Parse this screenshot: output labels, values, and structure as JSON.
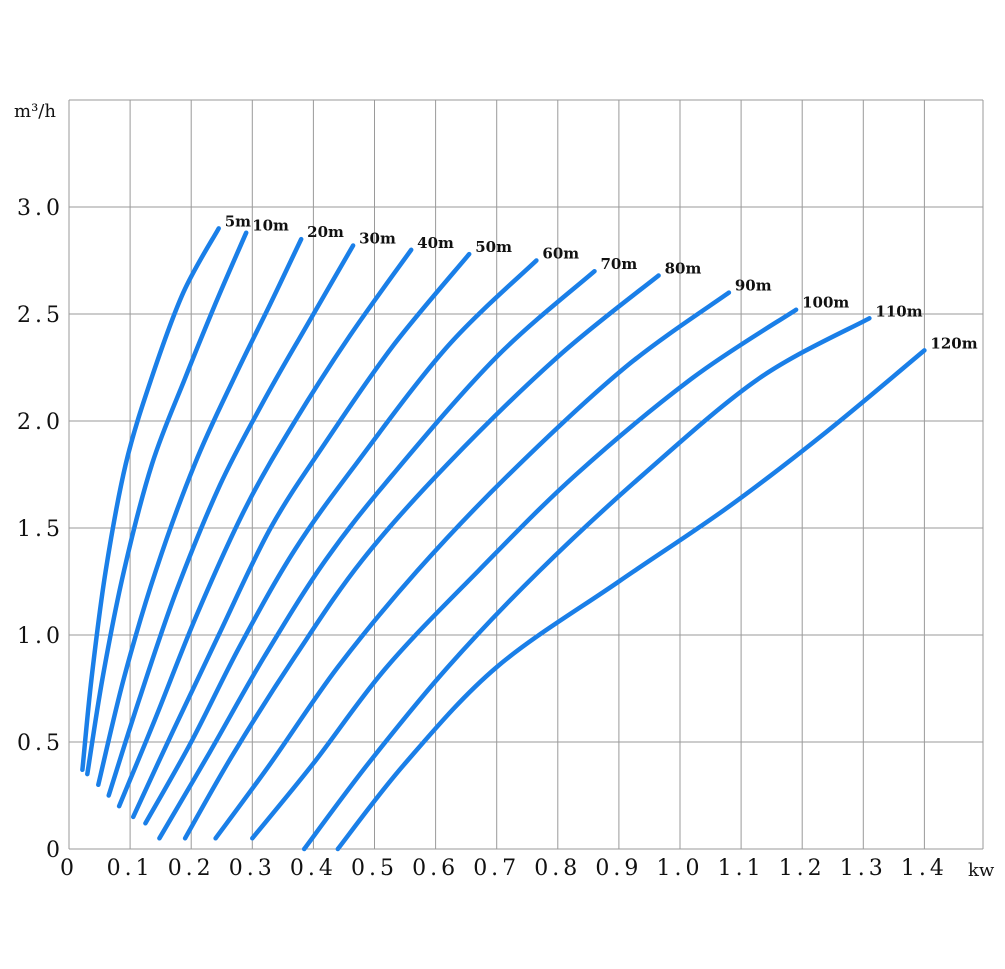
{
  "chart_data": {
    "type": "line",
    "xlabel": "kw",
    "ylabel": "m³/h",
    "xlim": [
      0,
      1.5
    ],
    "ylim": [
      0,
      3.5
    ],
    "x_ticks": [
      "0",
      "0.1",
      "0.2",
      "0.3",
      "0.4",
      "0.5",
      "0.6",
      "0.7",
      "0.8",
      "0.9",
      "1.0",
      "1.1",
      "1.2",
      "1.3",
      "1.4"
    ],
    "y_ticks": [
      "0",
      "0.5",
      "1.0",
      "1.5",
      "2.0",
      "2.5",
      "3.0"
    ],
    "grid": true,
    "line_color": "#1a7fe8",
    "series": [
      {
        "name": "5m",
        "x": [
          0.022,
          0.037,
          0.06,
          0.093,
          0.135,
          0.187,
          0.245
        ],
        "y": [
          0.37,
          0.8,
          1.3,
          1.8,
          2.2,
          2.6,
          2.9
        ]
      },
      {
        "name": "10m",
        "x": [
          0.03,
          0.055,
          0.09,
          0.136,
          0.19,
          0.24,
          0.29
        ],
        "y": [
          0.35,
          0.8,
          1.3,
          1.8,
          2.2,
          2.55,
          2.88
        ]
      },
      {
        "name": "20m",
        "x": [
          0.048,
          0.09,
          0.142,
          0.206,
          0.27,
          0.33,
          0.38
        ],
        "y": [
          0.3,
          0.8,
          1.3,
          1.8,
          2.2,
          2.55,
          2.85
        ]
      },
      {
        "name": "30m",
        "x": [
          0.065,
          0.115,
          0.175,
          0.247,
          0.32,
          0.39,
          0.465
        ],
        "y": [
          0.25,
          0.7,
          1.2,
          1.7,
          2.1,
          2.45,
          2.82
        ]
      },
      {
        "name": "40m",
        "x": [
          0.082,
          0.14,
          0.21,
          0.29,
          0.37,
          0.46,
          0.56
        ],
        "y": [
          0.2,
          0.6,
          1.1,
          1.6,
          2.0,
          2.4,
          2.8
        ]
      },
      {
        "name": "50m",
        "x": [
          0.105,
          0.17,
          0.245,
          0.33,
          0.42,
          0.53,
          0.655
        ],
        "y": [
          0.15,
          0.55,
          1.0,
          1.5,
          1.9,
          2.35,
          2.78
        ]
      },
      {
        "name": "60m",
        "x": [
          0.125,
          0.2,
          0.28,
          0.37,
          0.47,
          0.62,
          0.765
        ],
        "y": [
          0.12,
          0.5,
          0.95,
          1.4,
          1.8,
          2.35,
          2.75
        ]
      },
      {
        "name": "70m",
        "x": [
          0.148,
          0.23,
          0.32,
          0.42,
          0.53,
          0.7,
          0.86
        ],
        "y": [
          0.05,
          0.45,
          0.9,
          1.35,
          1.75,
          2.3,
          2.7
        ]
      },
      {
        "name": "80m",
        "x": [
          0.19,
          0.27,
          0.37,
          0.48,
          0.62,
          0.8,
          0.965
        ],
        "y": [
          0.05,
          0.45,
          0.9,
          1.35,
          1.8,
          2.3,
          2.68
        ]
      },
      {
        "name": "90m",
        "x": [
          0.24,
          0.33,
          0.44,
          0.57,
          0.72,
          0.91,
          1.08
        ],
        "y": [
          0.05,
          0.4,
          0.85,
          1.3,
          1.75,
          2.25,
          2.6
        ]
      },
      {
        "name": "100m",
        "x": [
          0.3,
          0.4,
          0.52,
          0.67,
          0.83,
          1.02,
          1.19
        ],
        "y": [
          0.05,
          0.4,
          0.85,
          1.3,
          1.75,
          2.2,
          2.52
        ]
      },
      {
        "name": "110m",
        "x": [
          0.385,
          0.49,
          0.62,
          0.77,
          0.94,
          1.13,
          1.31
        ],
        "y": [
          0.0,
          0.4,
          0.85,
          1.3,
          1.75,
          2.2,
          2.48
        ]
      },
      {
        "name": "120m",
        "x": [
          0.44,
          0.55,
          0.7,
          0.9,
          1.08,
          1.24,
          1.4
        ],
        "y": [
          0.0,
          0.4,
          0.85,
          1.25,
          1.6,
          1.95,
          2.33
        ]
      }
    ]
  }
}
